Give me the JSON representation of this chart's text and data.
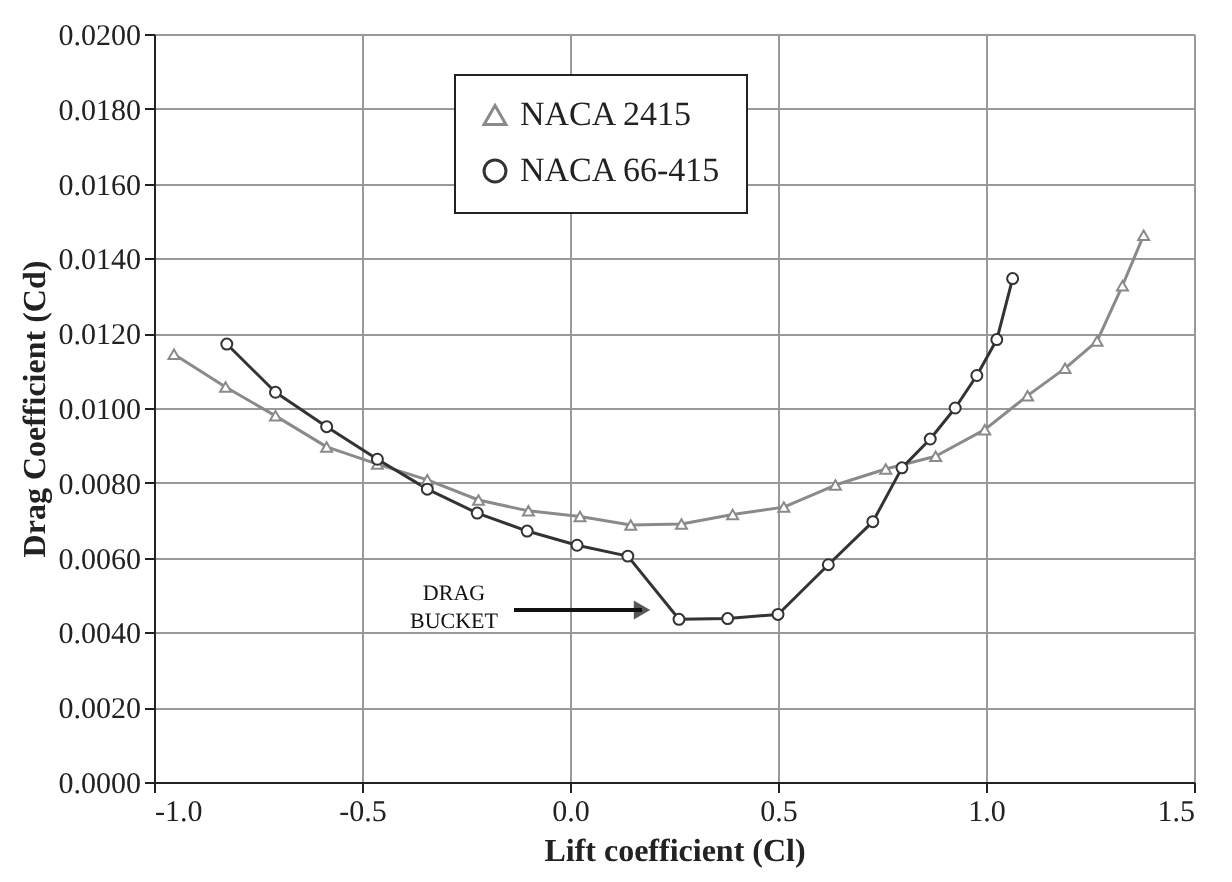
{
  "chart_data": {
    "type": "line",
    "xlabel": "Lift coefficient (Cl)",
    "ylabel": "Drag Coefficient (Cd)",
    "xlim": [
      -1.0,
      1.5
    ],
    "xticks": [
      {
        "value": -1.0,
        "label": "-1.0"
      },
      {
        "value": -0.5,
        "label": "-0.5"
      },
      {
        "value": 0,
        "label": "0.0"
      },
      {
        "value": 0.5,
        "label": "0.5"
      },
      {
        "value": 1.0,
        "label": "1.0"
      },
      {
        "value": 1.5,
        "label": "1.5"
      }
    ],
    "ylim": [
      0,
      0.02
    ],
    "yticks": [
      {
        "value": 0,
        "label": "0.0000"
      },
      {
        "value": 0.002,
        "label": "0.0020"
      },
      {
        "value": 0.004,
        "label": "0.0040"
      },
      {
        "value": 0.006,
        "label": "0.0060"
      },
      {
        "value": 0.008,
        "label": "0.0080"
      },
      {
        "value": 0.01,
        "label": "0.0100"
      },
      {
        "value": 0.012,
        "label": "0.0120"
      },
      {
        "value": 0.014,
        "label": "0.0140"
      },
      {
        "value": 0.016,
        "label": "0.0160"
      },
      {
        "value": 0.018,
        "label": "0.0180"
      },
      {
        "value": 0.02,
        "label": "0.0200"
      }
    ],
    "grid": true,
    "legend": "top",
    "line_style": "solid",
    "series": [
      {
        "name": "NACA 2415",
        "color": "#8a8a8a",
        "marker": "triangle",
        "x": [
          -0.952,
          -0.828,
          -0.708,
          -0.585,
          -0.463,
          -0.343,
          -0.22,
          -0.1,
          0.024,
          0.146,
          0.268,
          0.391,
          0.514,
          0.638,
          0.759,
          0.879,
          0.997,
          1.1,
          1.19,
          1.267,
          1.328,
          1.379
        ],
        "values": [
          0.01144,
          0.01056,
          0.00979,
          0.00896,
          0.0085,
          0.00808,
          0.00754,
          0.00725,
          0.0071,
          0.00687,
          0.0069,
          0.00715,
          0.00735,
          0.00794,
          0.00837,
          0.00871,
          0.00942,
          0.01033,
          0.01106,
          0.01179,
          0.01327,
          0.01462
        ]
      },
      {
        "name": "NACA 66-415",
        "color": "#333333",
        "marker": "circle",
        "x": [
          -0.825,
          -0.708,
          -0.585,
          -0.463,
          -0.343,
          -0.223,
          -0.103,
          0.017,
          0.139,
          0.262,
          0.379,
          0.5,
          0.621,
          0.728,
          0.798,
          0.866,
          0.926,
          0.978,
          1.026,
          1.064
        ],
        "values": [
          0.01171,
          0.01042,
          0.0095,
          0.00863,
          0.00783,
          0.00719,
          0.00671,
          0.00633,
          0.00604,
          0.00435,
          0.00437,
          0.00448,
          0.00581,
          0.00696,
          0.0084,
          0.00917,
          0.01,
          0.01087,
          0.01183,
          0.01346
        ]
      }
    ],
    "annotations": [
      "DRAG BUCKET"
    ]
  }
}
